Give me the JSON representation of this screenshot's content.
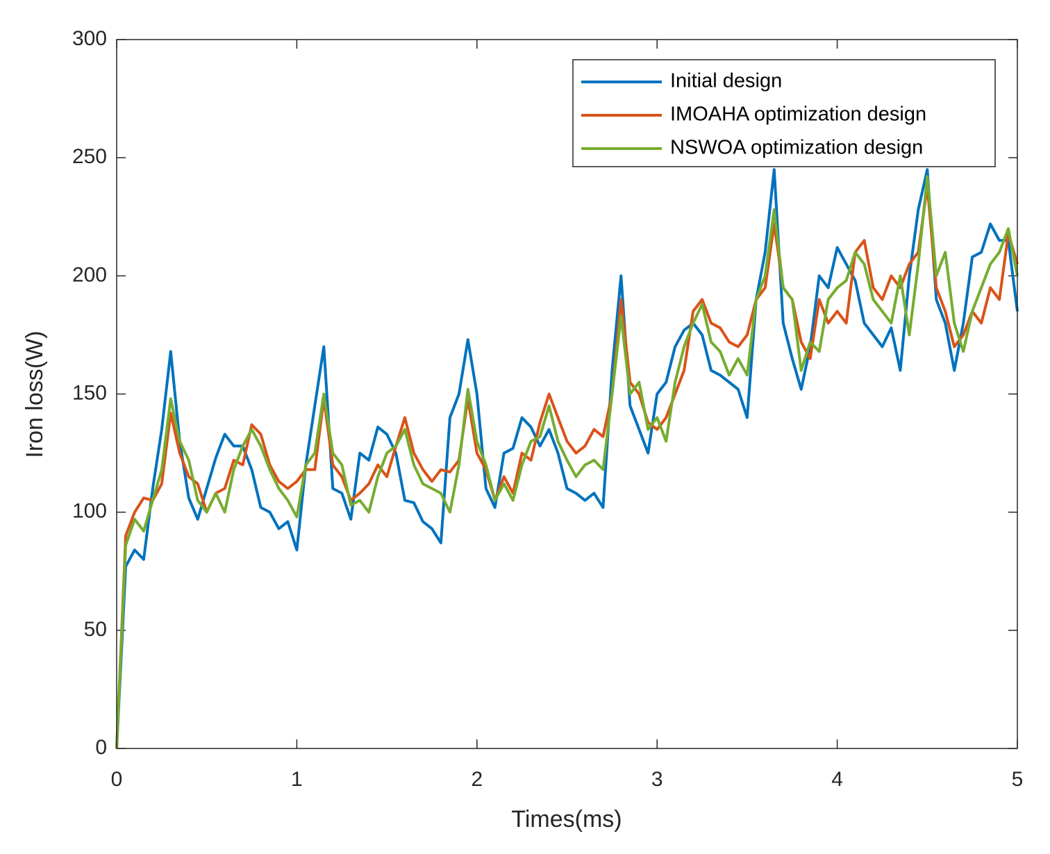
{
  "chart_data": {
    "type": "line",
    "xlabel": "Times(ms)",
    "ylabel": "Iron loss(W)",
    "xlim": [
      0,
      5
    ],
    "xticks": [
      0,
      1,
      2,
      3,
      4,
      5
    ],
    "ylim": [
      0,
      300
    ],
    "yticks": [
      0,
      50,
      100,
      150,
      200,
      250,
      300
    ],
    "legend": "upper right",
    "grid": false,
    "x": [
      0,
      0.05,
      0.1,
      0.15,
      0.2,
      0.25,
      0.3,
      0.35,
      0.4,
      0.45,
      0.5,
      0.55,
      0.6,
      0.65,
      0.7,
      0.75,
      0.8,
      0.85,
      0.9,
      0.95,
      1,
      1.05,
      1.1,
      1.15,
      1.2,
      1.25,
      1.3,
      1.35,
      1.4,
      1.45,
      1.5,
      1.55,
      1.6,
      1.65,
      1.7,
      1.75,
      1.8,
      1.85,
      1.9,
      1.95,
      2,
      2.05,
      2.1,
      2.15,
      2.2,
      2.25,
      2.3,
      2.35,
      2.4,
      2.45,
      2.5,
      2.55,
      2.6,
      2.65,
      2.7,
      2.75,
      2.8,
      2.85,
      2.9,
      2.95,
      3,
      3.05,
      3.1,
      3.15,
      3.2,
      3.25,
      3.3,
      3.35,
      3.4,
      3.45,
      3.5,
      3.55,
      3.6,
      3.65,
      3.7,
      3.75,
      3.8,
      3.85,
      3.9,
      3.95,
      4,
      4.05,
      4.1,
      4.15,
      4.2,
      4.25,
      4.3,
      4.35,
      4.4,
      4.45,
      4.5,
      4.55,
      4.6,
      4.65,
      4.7,
      4.75,
      4.8,
      4.85,
      4.9,
      4.95,
      5
    ],
    "series": [
      {
        "name": "Initial design",
        "color": "#0072BD",
        "values": [
          0,
          77,
          84,
          80,
          110,
          135,
          168,
          130,
          106,
          97,
          110,
          123,
          133,
          128,
          128,
          118,
          102,
          100,
          93,
          96,
          84,
          120,
          145,
          170,
          110,
          108,
          97,
          125,
          122,
          136,
          133,
          125,
          105,
          104,
          96,
          93,
          87,
          140,
          150,
          173,
          150,
          110,
          102,
          125,
          127,
          140,
          136,
          128,
          135,
          125,
          110,
          108,
          105,
          108,
          102,
          160,
          200,
          145,
          135,
          125,
          150,
          155,
          170,
          177,
          180,
          175,
          160,
          158,
          155,
          152,
          140,
          190,
          210,
          245,
          180,
          165,
          152,
          170,
          200,
          195,
          212,
          205,
          198,
          180,
          175,
          170,
          178,
          160,
          200,
          228,
          245,
          190,
          180,
          160,
          180,
          208,
          210,
          222,
          215,
          215,
          185
        ]
      },
      {
        "name": "IMOAHA optimization design",
        "color": "#D95319",
        "values": [
          0,
          90,
          100,
          106,
          105,
          112,
          142,
          125,
          115,
          112,
          100,
          108,
          110,
          122,
          120,
          137,
          133,
          120,
          113,
          110,
          113,
          118,
          118,
          148,
          120,
          115,
          105,
          108,
          112,
          120,
          115,
          128,
          140,
          125,
          118,
          113,
          118,
          117,
          122,
          148,
          125,
          118,
          105,
          115,
          108,
          125,
          122,
          138,
          150,
          140,
          130,
          125,
          128,
          135,
          132,
          150,
          190,
          155,
          150,
          138,
          135,
          140,
          150,
          160,
          185,
          190,
          180,
          178,
          172,
          170,
          175,
          190,
          195,
          222,
          195,
          190,
          172,
          165,
          190,
          180,
          185,
          180,
          210,
          215,
          195,
          190,
          200,
          195,
          205,
          210,
          238,
          195,
          185,
          170,
          175,
          185,
          180,
          195,
          190,
          218,
          205
        ]
      },
      {
        "name": "NSWOA optimization design",
        "color": "#77AC30",
        "values": [
          0,
          86,
          97,
          92,
          105,
          118,
          148,
          130,
          122,
          105,
          100,
          108,
          100,
          118,
          128,
          135,
          128,
          118,
          110,
          105,
          98,
          120,
          125,
          150,
          125,
          120,
          103,
          105,
          100,
          115,
          125,
          128,
          135,
          120,
          112,
          110,
          108,
          100,
          120,
          152,
          130,
          120,
          105,
          112,
          105,
          120,
          130,
          132,
          145,
          130,
          122,
          115,
          120,
          122,
          118,
          150,
          183,
          150,
          155,
          135,
          140,
          130,
          155,
          170,
          180,
          188,
          172,
          168,
          158,
          165,
          158,
          190,
          200,
          228,
          195,
          190,
          160,
          172,
          168,
          190,
          195,
          198,
          210,
          205,
          190,
          185,
          180,
          200,
          175,
          205,
          242,
          200,
          210,
          180,
          168,
          185,
          195,
          205,
          210,
          220,
          200
        ]
      }
    ]
  }
}
